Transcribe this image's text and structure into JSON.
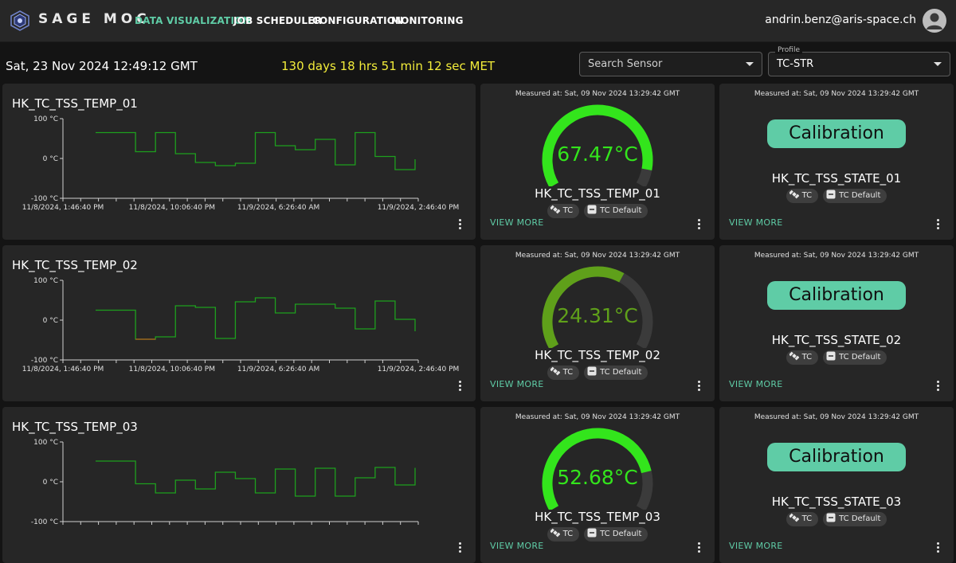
{
  "app": {
    "brand": "SAGE MOC",
    "nav": [
      {
        "label": "DATA VISUALIZATION",
        "active": true
      },
      {
        "label": "JOB SCHEDULER",
        "active": false
      },
      {
        "label": "CONFIGURATION",
        "active": false
      },
      {
        "label": "MONITORING",
        "active": false
      }
    ],
    "user_email": "andrin.benz@aris-space.ch",
    "accent_color": "#5fcca6"
  },
  "status": {
    "datetime": "Sat, 23 Nov 2024 12:49:12 GMT",
    "met": "130 days 18 hrs 51 min 12 sec MET",
    "met_color": "#f2ec3a"
  },
  "filters": {
    "search_placeholder": "Search Sensor",
    "profile_label": "Profile",
    "profile_value": "TC-STR"
  },
  "labels": {
    "view_more": "VIEW MORE",
    "calibration": "Calibration",
    "chip_subsystem": "TC",
    "chip_default": "TC Default"
  },
  "sensors": [
    {
      "name": "HK_TC_TSS_TEMP_01",
      "state_name": "HK_TC_TSS_STATE_01",
      "measured": "Measured at: Sat, 09 Nov 2024 13:29:42 GMT",
      "value": 67.47,
      "value_text": "67.47°C",
      "gauge_fraction": 0.92,
      "color": "#33e51c",
      "chart_data": {
        "type": "line",
        "step": true,
        "y_ticks": [
          "100 °C",
          "0 °C",
          "-100 °C"
        ],
        "ylim": [
          -100,
          100
        ],
        "x_tick_labels": [
          "11/8/2024, 1:46:40 PM",
          "11/8/2024, 10:06:40 PM",
          "11/9/2024, 6:26:40 AM",
          "11/9/2024, 2:46:40 PM"
        ],
        "values": [
          65,
          65,
          17,
          65,
          12,
          -10,
          -18,
          -12,
          65,
          32,
          22,
          48,
          -16,
          65,
          5,
          -28,
          -2
        ],
        "series_color": "#1e9f1e"
      }
    },
    {
      "name": "HK_TC_TSS_TEMP_02",
      "state_name": "HK_TC_TSS_STATE_02",
      "measured": "Measured at: Sat, 09 Nov 2024 13:29:42 GMT",
      "value": 24.31,
      "value_text": "24.31°C",
      "gauge_fraction": 0.62,
      "color": "#5fa01a",
      "chart_data": {
        "type": "line",
        "step": true,
        "y_ticks": [
          "100 °C",
          "0 °C",
          "-100 °C"
        ],
        "ylim": [
          -100,
          100
        ],
        "x_tick_labels": [
          "11/8/2024, 1:46:40 PM",
          "11/8/2024, 10:06:40 PM",
          "11/9/2024, 6:26:40 AM",
          "11/9/2024, 2:46:40 PM"
        ],
        "values": [
          25,
          25,
          -48,
          -42,
          36,
          32,
          -46,
          46,
          56,
          18,
          40,
          40,
          30,
          -22,
          48,
          2,
          -28
        ],
        "series_color": "#1e9f1e",
        "low_color": "#b5651d"
      }
    },
    {
      "name": "HK_TC_TSS_TEMP_03",
      "state_name": "HK_TC_TSS_STATE_03",
      "measured": "Measured at: Sat, 09 Nov 2024 13:29:42 GMT",
      "value": 52.68,
      "value_text": "52.68°C",
      "gauge_fraction": 0.82,
      "color": "#33e51c",
      "chart_data": {
        "type": "line",
        "step": true,
        "y_ticks": [
          "100 °C",
          "0 °C",
          "-100 °C"
        ],
        "ylim": [
          -100,
          100
        ],
        "x_tick_labels": [],
        "values": [
          52,
          52,
          -5,
          -28,
          4,
          -18,
          24,
          8,
          -28,
          32,
          -36,
          34,
          -36,
          10,
          36,
          -8,
          35
        ],
        "series_color": "#1e9f1e"
      }
    }
  ]
}
